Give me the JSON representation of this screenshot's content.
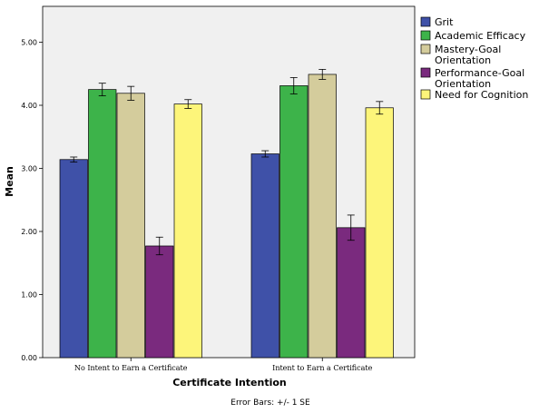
{
  "chart_data": {
    "type": "bar",
    "categories": [
      "No Intent to Earn a Certificate",
      "Intent to Earn a Certificate"
    ],
    "series": [
      {
        "name": "Grit",
        "values": [
          3.14,
          3.23
        ],
        "se": [
          0.04,
          0.05
        ],
        "color": "#3f51a8"
      },
      {
        "name": "Academic Efficacy",
        "values": [
          4.25,
          4.31
        ],
        "se": [
          0.1,
          0.13
        ],
        "color": "#3db34a"
      },
      {
        "name": "Mastery-Goal Orientation",
        "values": [
          4.19,
          4.49
        ],
        "se": [
          0.11,
          0.08
        ],
        "color": "#d4cc9c"
      },
      {
        "name": "Performance-Goal Orientation",
        "values": [
          1.77,
          2.06
        ],
        "se": [
          0.14,
          0.2
        ],
        "color": "#7a2a7e"
      },
      {
        "name": "Need for Cognition",
        "values": [
          4.02,
          3.96
        ],
        "se": [
          0.07,
          0.1
        ],
        "color": "#fdf57a"
      }
    ],
    "legend_lines": [
      [
        "Grit"
      ],
      [
        "Academic Efficacy"
      ],
      [
        "Mastery-Goal",
        "Orientation"
      ],
      [
        "Performance-Goal",
        "Orientation"
      ],
      [
        "Need for Cognition"
      ]
    ],
    "xlabel": "Certificate Intention",
    "ylabel": "Mean",
    "ylim": [
      0,
      5.4
    ],
    "yticks": [
      "0.00",
      "1.00",
      "2.00",
      "3.00",
      "4.00",
      "5.00"
    ],
    "legend_position": "right",
    "grid": false,
    "footnote": "Error Bars: +/- 1 SE"
  }
}
